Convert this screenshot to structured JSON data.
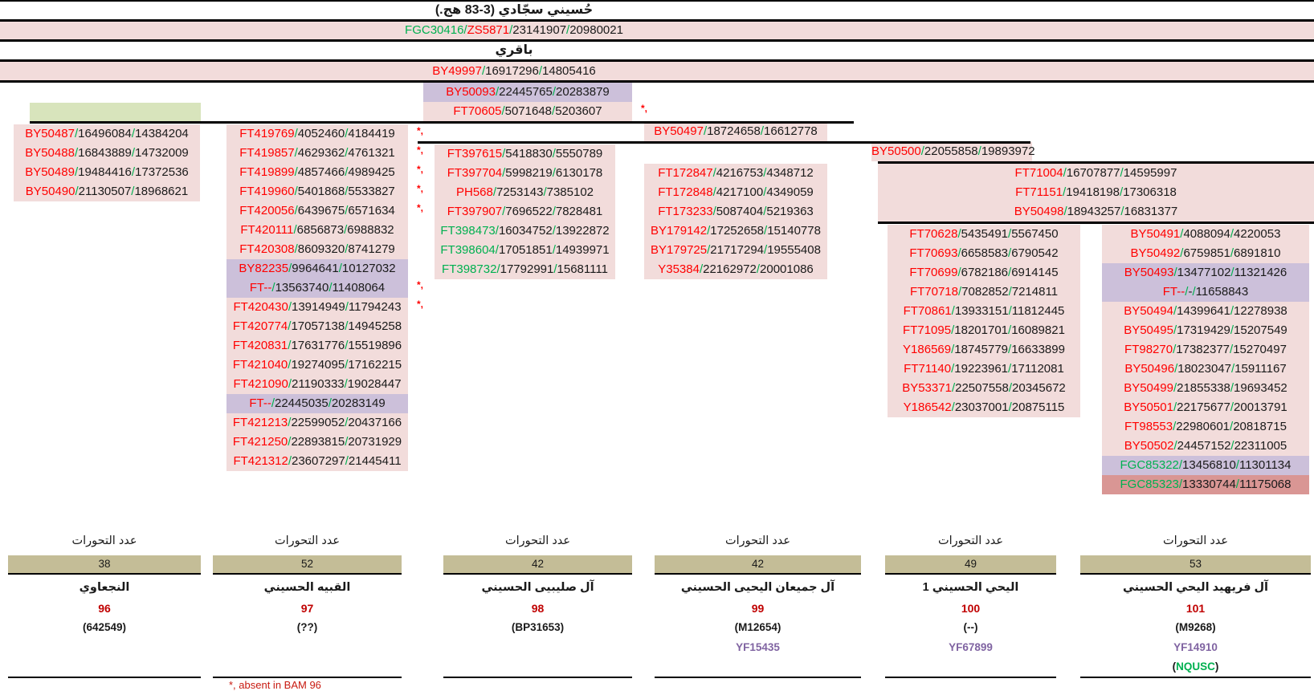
{
  "page": {
    "title": "حُسيني سجّادي (3-83 هج.)",
    "subtitle": "باقري",
    "separator": "/",
    "asterisk_mark": "*,",
    "footnote": "*, absent in BAM 96",
    "mutation_count_label": "عدد التحورات"
  },
  "colors": {
    "pink_row": "#F2DCDB",
    "purple_row": "#CCC0DA",
    "salmon_row": "#D99694",
    "green_box": "#D8E4BC",
    "tan_count_box": "#C4BD97",
    "snp_red": "#FF0000",
    "snp_green": "#00B050",
    "value_black": "#1a1a1a",
    "index_dark_red": "#C00000",
    "yfull_violet": "#8064A2",
    "footnote_red": "#C81A10"
  },
  "header_rows": [
    {
      "seg": [
        {
          "t": "FGC30416",
          "c": "g"
        },
        {
          "t": "ZS5871",
          "c": "r"
        },
        {
          "t": "23141907",
          "c": "k"
        },
        {
          "t": "20980021",
          "c": "k"
        }
      ]
    },
    {
      "seg": [
        {
          "t": "BY49997",
          "c": "r"
        },
        {
          "t": "16917296",
          "c": "k"
        },
        {
          "t": "14805416",
          "c": "k"
        }
      ]
    }
  ],
  "center_rows": [
    {
      "n": "BY50093",
      "c": "r",
      "v": [
        "22445765",
        "20283879"
      ],
      "bg": "purple"
    },
    {
      "n": "FT70605",
      "c": "r",
      "v": [
        "5071648",
        "5203607"
      ],
      "bg": "pink",
      "a": 1
    }
  ],
  "branch_headers": [
    {
      "n": "BY50497",
      "c": "r",
      "v": [
        "18724658",
        "16612778"
      ],
      "bg": "pink"
    },
    {
      "n": "BY50500",
      "c": "r",
      "v": [
        "22055858",
        "19893972"
      ],
      "bg": "pink"
    }
  ],
  "wide_rows": [
    {
      "n": "FT71004",
      "c": "r",
      "v": [
        "16707877",
        "14595997"
      ],
      "bg": "pink"
    },
    {
      "n": "FT71151",
      "c": "r",
      "v": [
        "19418198",
        "17306318"
      ],
      "bg": "pink"
    },
    {
      "n": "BY50498",
      "c": "r",
      "v": [
        "18943257",
        "16831377"
      ],
      "bg": "pink"
    }
  ],
  "columns": [
    {
      "rows": [
        {
          "n": "BY50487",
          "c": "r",
          "v": [
            "16496084",
            "14384204"
          ]
        },
        {
          "n": "BY50488",
          "c": "r",
          "v": [
            "16843889",
            "14732009"
          ]
        },
        {
          "n": "BY50489",
          "c": "r",
          "v": [
            "19484416",
            "17372536"
          ]
        },
        {
          "n": "BY50490",
          "c": "r",
          "v": [
            "21130507",
            "18968621"
          ]
        }
      ]
    },
    {
      "rows": [
        {
          "n": "FT419769",
          "c": "r",
          "v": [
            "4052460",
            "4184419"
          ],
          "a": 1
        },
        {
          "n": "FT419857",
          "c": "r",
          "v": [
            "4629362",
            "4761321"
          ],
          "a": 1
        },
        {
          "n": "FT419899",
          "c": "r",
          "v": [
            "4857466",
            "4989425"
          ],
          "a": 1
        },
        {
          "n": "FT419960",
          "c": "r",
          "v": [
            "5401868",
            "5533827"
          ],
          "a": 1
        },
        {
          "n": "FT420056",
          "c": "r",
          "v": [
            "6439675",
            "6571634"
          ],
          "a": 1
        },
        {
          "n": "FT420111",
          "c": "r",
          "v": [
            "6856873",
            "6988832"
          ]
        },
        {
          "n": "FT420308",
          "c": "r",
          "v": [
            "8609320",
            "8741279"
          ]
        },
        {
          "n": "BY82235",
          "c": "r",
          "v": [
            "9964641",
            "10127032"
          ],
          "bg": "purple"
        },
        {
          "n": "FT--",
          "c": "r",
          "v": [
            "13563740",
            "11408064"
          ],
          "bg": "purple",
          "a": 1
        },
        {
          "n": "FT420430",
          "c": "r",
          "v": [
            "13914949",
            "11794243"
          ],
          "a": 1
        },
        {
          "n": "FT420774",
          "c": "r",
          "v": [
            "17057138",
            "14945258"
          ]
        },
        {
          "n": "FT420831",
          "c": "r",
          "v": [
            "17631776",
            "15519896"
          ]
        },
        {
          "n": "FT421040",
          "c": "r",
          "v": [
            "19274095",
            "17162215"
          ]
        },
        {
          "n": "FT421090",
          "c": "r",
          "v": [
            "21190333",
            "19028447"
          ]
        },
        {
          "n": "FT--",
          "c": "r",
          "v": [
            "22445035",
            "20283149"
          ],
          "bg": "purple"
        },
        {
          "n": "FT421213",
          "c": "r",
          "v": [
            "22599052",
            "20437166"
          ]
        },
        {
          "n": "FT421250",
          "c": "r",
          "v": [
            "22893815",
            "20731929"
          ]
        },
        {
          "n": "FT421312",
          "c": "r",
          "v": [
            "23607297",
            "21445411"
          ]
        }
      ]
    },
    {
      "rows": [
        {
          "n": "FT397615",
          "c": "r",
          "v": [
            "5418830",
            "5550789"
          ]
        },
        {
          "n": "FT397704",
          "c": "r",
          "v": [
            "5998219",
            "6130178"
          ]
        },
        {
          "n": "PH568",
          "c": "r",
          "v": [
            "7253143",
            "7385102"
          ]
        },
        {
          "n": "FT397907",
          "c": "r",
          "v": [
            "7696522",
            "7828481"
          ]
        },
        {
          "n": "FT398473",
          "c": "g",
          "v": [
            "16034752",
            "13922872"
          ]
        },
        {
          "n": "FT398604",
          "c": "g",
          "v": [
            "17051851",
            "14939971"
          ]
        },
        {
          "n": "FT398732",
          "c": "g",
          "v": [
            "17792991",
            "15681111"
          ]
        }
      ]
    },
    {
      "rows": [
        {
          "n": "FT172847",
          "c": "r",
          "v": [
            "4216753",
            "4348712"
          ]
        },
        {
          "n": "FT172848",
          "c": "r",
          "v": [
            "4217100",
            "4349059"
          ]
        },
        {
          "n": "FT173233",
          "c": "r",
          "v": [
            "5087404",
            "5219363"
          ]
        },
        {
          "n": "BY179142",
          "c": "r",
          "v": [
            "17252658",
            "15140778"
          ]
        },
        {
          "n": "BY179725",
          "c": "r",
          "v": [
            "21717294",
            "19555408"
          ]
        },
        {
          "n": "Y35384",
          "c": "r",
          "v": [
            "22162972",
            "20001086"
          ]
        }
      ]
    },
    {
      "rows": [
        {
          "n": "FT70628",
          "c": "r",
          "v": [
            "5435491",
            "5567450"
          ]
        },
        {
          "n": "FT70693",
          "c": "r",
          "v": [
            "6658583",
            "6790542"
          ]
        },
        {
          "n": "FT70699",
          "c": "r",
          "v": [
            "6782186",
            "6914145"
          ]
        },
        {
          "n": "FT70718",
          "c": "r",
          "v": [
            "7082852",
            "7214811"
          ]
        },
        {
          "n": "FT70861",
          "c": "r",
          "v": [
            "13933151",
            "11812445"
          ]
        },
        {
          "n": "FT71095",
          "c": "r",
          "v": [
            "18201701",
            "16089821"
          ]
        },
        {
          "n": "Y186569",
          "c": "r",
          "v": [
            "18745779",
            "16633899"
          ]
        },
        {
          "n": "FT71140",
          "c": "r",
          "v": [
            "19223961",
            "17112081"
          ]
        },
        {
          "n": "BY53371",
          "c": "r",
          "v": [
            "22507558",
            "20345672"
          ]
        },
        {
          "n": "Y186542",
          "c": "r",
          "v": [
            "23037001",
            "20875115"
          ]
        }
      ]
    },
    {
      "rows": [
        {
          "n": "BY50491",
          "c": "r",
          "v": [
            "4088094",
            "4220053"
          ]
        },
        {
          "n": "BY50492",
          "c": "r",
          "v": [
            "6759851",
            "6891810"
          ]
        },
        {
          "n": "BY50493",
          "c": "r",
          "v": [
            "13477102",
            "11321426"
          ],
          "bg": "purple"
        },
        {
          "n": "FT--",
          "c": "r",
          "v": [
            "-",
            "11658843"
          ],
          "bg": "purple"
        },
        {
          "n": "BY50494",
          "c": "r",
          "v": [
            "14399641",
            "12278938"
          ]
        },
        {
          "n": "BY50495",
          "c": "r",
          "v": [
            "17319429",
            "15207549"
          ]
        },
        {
          "n": "FT98270",
          "c": "r",
          "v": [
            "17382377",
            "15270497"
          ]
        },
        {
          "n": "BY50496",
          "c": "r",
          "v": [
            "18023047",
            "15911167"
          ]
        },
        {
          "n": "BY50499",
          "c": "r",
          "v": [
            "21855338",
            "19693452"
          ]
        },
        {
          "n": "BY50501",
          "c": "r",
          "v": [
            "22175677",
            "20013791"
          ]
        },
        {
          "n": "FT98553",
          "c": "r",
          "v": [
            "22980601",
            "20818715"
          ]
        },
        {
          "n": "BY50502",
          "c": "r",
          "v": [
            "24457152",
            "22311005"
          ]
        },
        {
          "n": "FGC85322",
          "c": "g",
          "v": [
            "13456810",
            "11301134"
          ],
          "bg": "purple"
        },
        {
          "n": "FGC85323",
          "c": "g",
          "v": [
            "13330744",
            "11175068"
          ],
          "bg": "salmon"
        }
      ]
    }
  ],
  "summary_blocks": [
    {
      "count": "38",
      "name": "النجعاوي",
      "number": "96",
      "sample": "(642549)"
    },
    {
      "count": "52",
      "name": "القبيه الحسيني",
      "number": "97",
      "sample": "(??)"
    },
    {
      "count": "42",
      "name": "آل صليبيى الحسيني",
      "number": "98",
      "sample": "(BP31653)"
    },
    {
      "count": "42",
      "name": "آل جميعان اليحيى الحسيني",
      "number": "99",
      "sample": "(M12654)",
      "yf": "YF15435"
    },
    {
      "count": "49",
      "name": "اليحي الحسيني 1",
      "number": "100",
      "sample": "(--)",
      "yf": "YF67899"
    },
    {
      "count": "53",
      "name": "آل فريهيد اليحي الحسيني",
      "number": "101",
      "sample": "(M9268)",
      "yf": "YF14910",
      "extra": [
        {
          "t": "(",
          "c": "k"
        },
        {
          "t": "NQUSC",
          "c": "g"
        },
        {
          "t": ")",
          "c": "k"
        }
      ]
    }
  ]
}
